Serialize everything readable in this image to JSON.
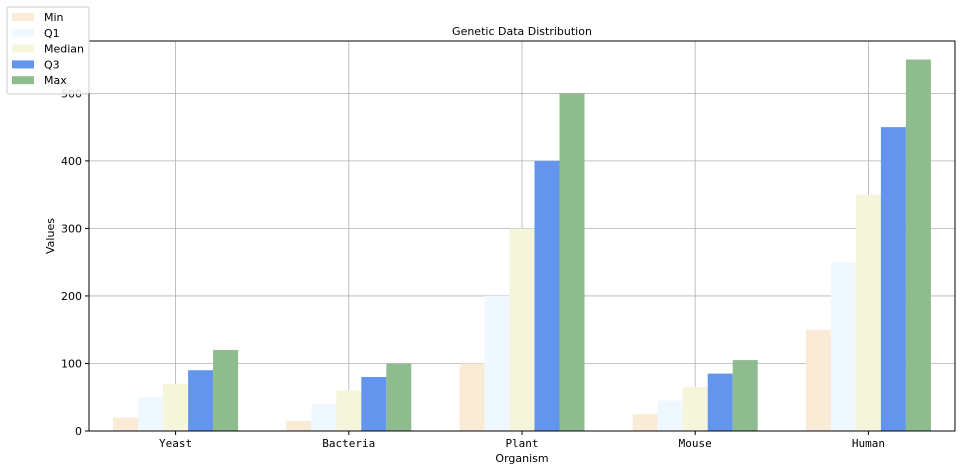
{
  "chart_data": {
    "type": "bar",
    "title": "Genetic Data Distribution",
    "xlabel": "Organism",
    "ylabel": "Values",
    "categories": [
      "Yeast",
      "Bacteria",
      "Plant",
      "Mouse",
      "Human"
    ],
    "series": [
      {
        "name": "Min",
        "color": "#FAEBD7",
        "values": [
          20,
          15,
          100,
          25,
          150
        ]
      },
      {
        "name": "Q1",
        "color": "#F0F8FF",
        "values": [
          50,
          40,
          200,
          45,
          250
        ]
      },
      {
        "name": "Median",
        "color": "#F5F5DC",
        "values": [
          70,
          60,
          300,
          65,
          350
        ]
      },
      {
        "name": "Q3",
        "color": "#6495ED",
        "values": [
          90,
          80,
          400,
          85,
          450
        ]
      },
      {
        "name": "Max",
        "color": "#8FBC8F",
        "values": [
          120,
          100,
          500,
          105,
          550
        ]
      }
    ],
    "ylim": [
      0,
      577.5
    ],
    "yticks": [
      0,
      100,
      200,
      300,
      400,
      500
    ],
    "grid": true,
    "legend_position": "top-left"
  }
}
